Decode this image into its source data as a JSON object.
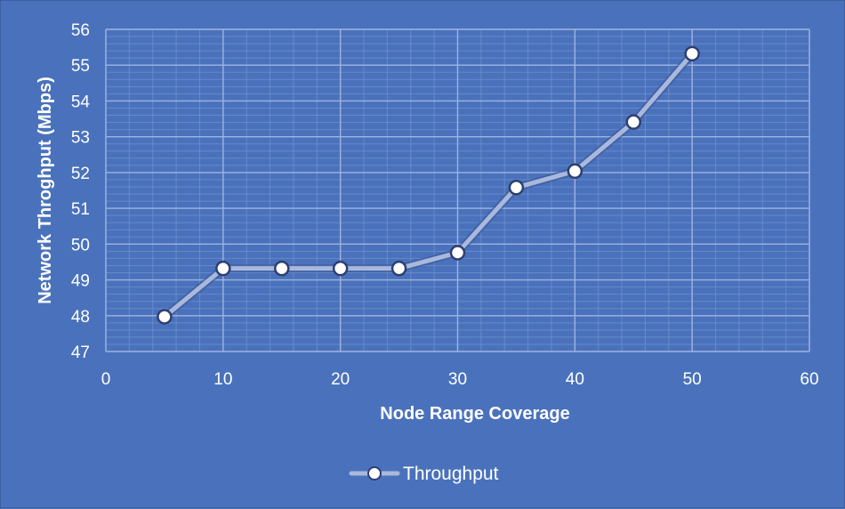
{
  "chart_data": {
    "type": "line",
    "title": "",
    "xlabel": "Node Range Coverage",
    "ylabel": "Network Throghput (Mbps)",
    "xlim": [
      0,
      60
    ],
    "ylim": [
      47,
      56
    ],
    "x_ticks": [
      0,
      10,
      20,
      30,
      40,
      50,
      60
    ],
    "y_ticks": [
      47,
      48,
      49,
      50,
      51,
      52,
      53,
      54,
      55,
      56
    ],
    "grid": true,
    "legend_position": "bottom",
    "series": [
      {
        "name": "Throughput",
        "color": "#a9b8dc",
        "x": [
          5,
          10,
          15,
          20,
          25,
          30,
          35,
          40,
          45,
          50
        ],
        "y": [
          47.97,
          49.32,
          49.32,
          49.32,
          49.32,
          49.76,
          51.58,
          52.04,
          53.41,
          55.32
        ]
      }
    ]
  },
  "colors": {
    "background": "#4a72bc",
    "grid": "#7f9ad3",
    "line": "#a9b8dc",
    "marker_fill": "#ffffff",
    "marker_stroke": "#2d3f70"
  }
}
